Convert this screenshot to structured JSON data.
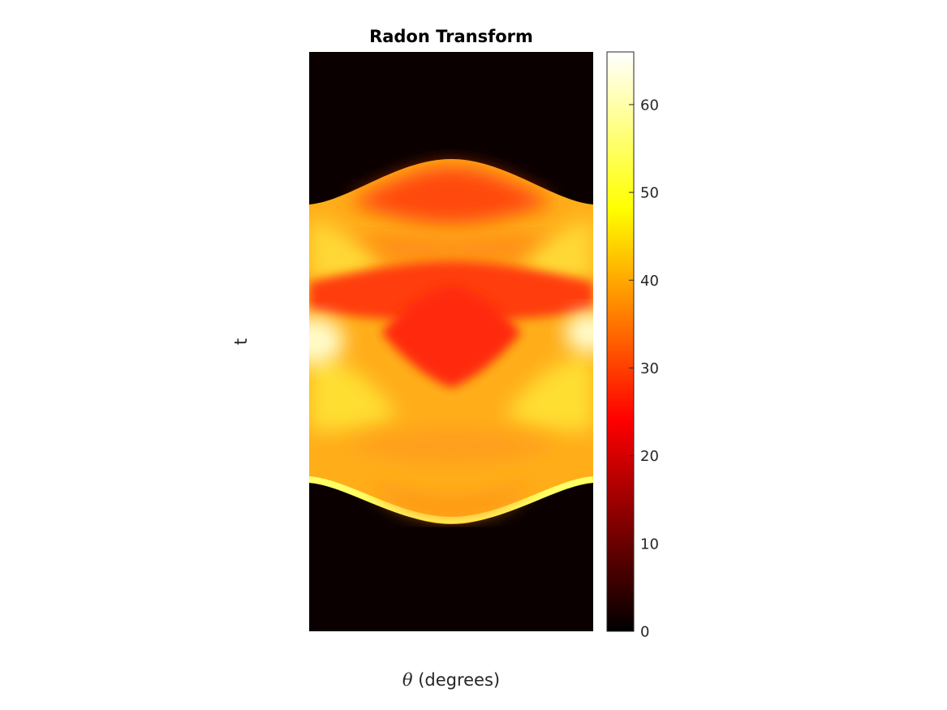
{
  "chart_data": {
    "type": "heatmap",
    "title": "Radon Transform",
    "xlabel_symbol": "θ",
    "xlabel_text": " (degrees)",
    "ylabel": "t",
    "x_ticks_shown": false,
    "y_ticks_shown": false,
    "grid": false,
    "colormap": "hot",
    "colormap_stops": [
      "#000000",
      "#ff0000",
      "#ffff00",
      "#ffffff"
    ],
    "background_color": "#0a0000",
    "colorbar": {
      "placement": "right",
      "range": [
        0,
        66
      ],
      "ticks": [
        0,
        10,
        20,
        30,
        40,
        50,
        60
      ]
    }
  }
}
